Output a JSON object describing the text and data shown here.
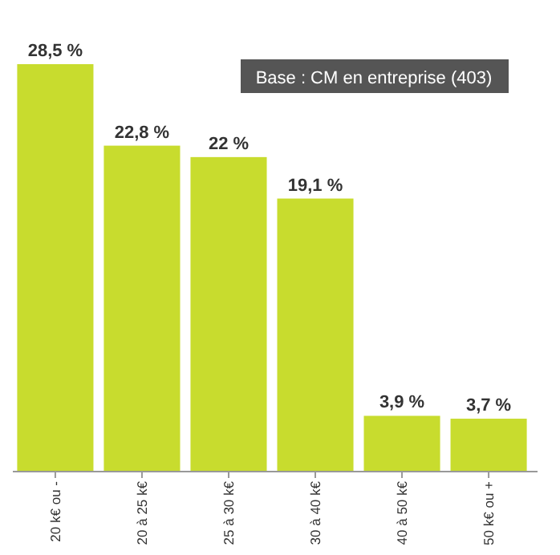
{
  "chart_data": {
    "type": "bar",
    "categories": [
      "20 k€ ou -",
      "20 à 25 k€",
      "25 à 30 k€",
      "30 à 40 k€",
      "40 à 50 k€",
      "50 k€ ou +"
    ],
    "values": [
      28.5,
      22.8,
      22,
      19.1,
      3.9,
      3.7
    ],
    "value_labels": [
      "28,5 %",
      "22,8 %",
      "22 %",
      "19,1 %",
      "3,9 %",
      "3,7 %"
    ],
    "color": "#c8dc2e",
    "annotations": [
      "Base : CM en entreprise (403)"
    ]
  }
}
